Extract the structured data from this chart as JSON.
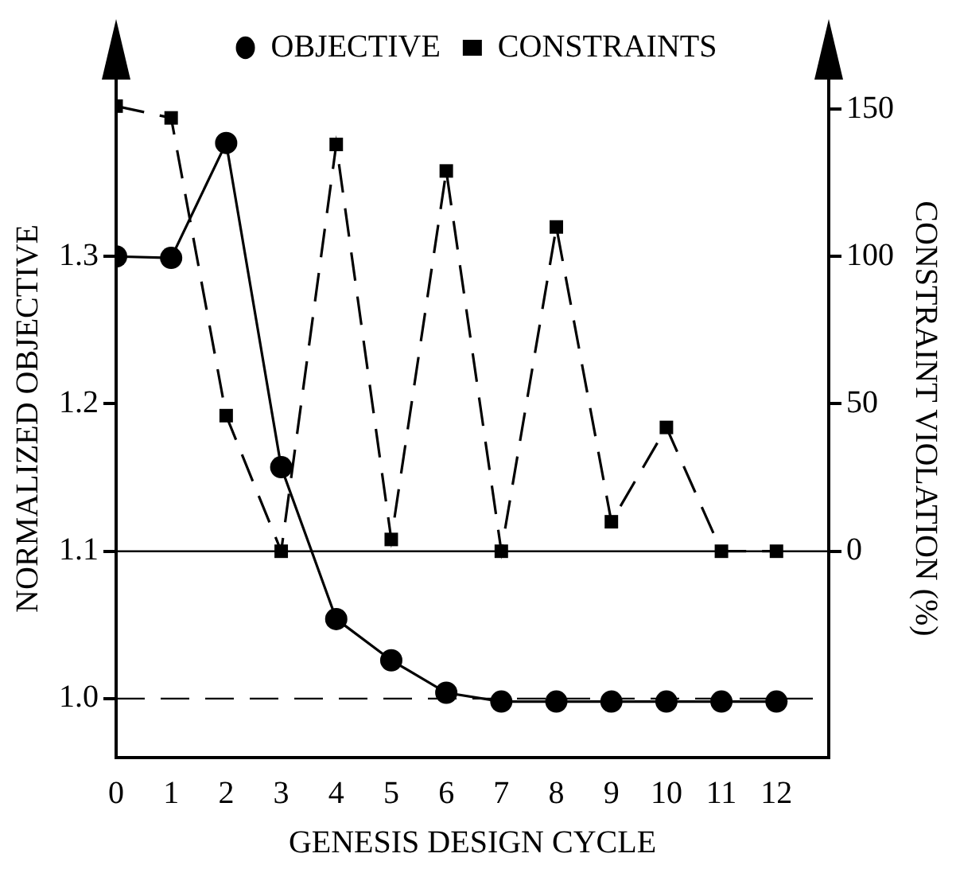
{
  "chart_data": {
    "type": "line",
    "xlabel": "GENESIS DESIGN CYCLE",
    "ylabel": "NORMALIZED OBJECTIVE",
    "y2label": "CONSTRAINT VIOLATION (%)",
    "x": [
      0,
      1,
      2,
      3,
      4,
      5,
      6,
      7,
      8,
      9,
      10,
      11,
      12
    ],
    "xlim": [
      0,
      12.95
    ],
    "xticks": [
      0,
      1,
      2,
      3,
      4,
      5,
      6,
      7,
      8,
      9,
      10,
      11,
      12
    ],
    "ylim": [
      0.96,
      1.42
    ],
    "yticks": [
      {
        "value": 1,
        "label": "1.0"
      },
      1.1,
      1.2,
      1.3
    ],
    "y2lim": [
      -70,
      160
    ],
    "y2ticks": [
      0,
      50,
      100,
      150
    ],
    "series": [
      {
        "name": "OBJECTIVE",
        "color": "#000000",
        "marker": "circle",
        "line_style": "solid",
        "values": [
          1.3,
          1.299,
          1.377,
          1.157,
          1.054,
          1.026,
          1.004,
          0.998,
          0.998,
          0.998,
          0.998,
          0.998,
          0.998
        ]
      },
      {
        "name": "CONSTRAINTS",
        "color": "#000000",
        "marker": "square",
        "line_style": "dashed",
        "axis": "y2",
        "values": [
          151,
          147,
          46,
          0,
          138,
          4,
          129,
          0,
          110,
          10,
          42,
          0,
          0
        ]
      }
    ],
    "ref_lines": [
      {
        "axis": "y",
        "value": 1.1,
        "line_style": "solid",
        "color": "#000000"
      },
      {
        "axis": "y",
        "value": 1.0,
        "line_style": "dashed",
        "color": "#000000"
      }
    ],
    "grid": false,
    "legend": "top"
  }
}
